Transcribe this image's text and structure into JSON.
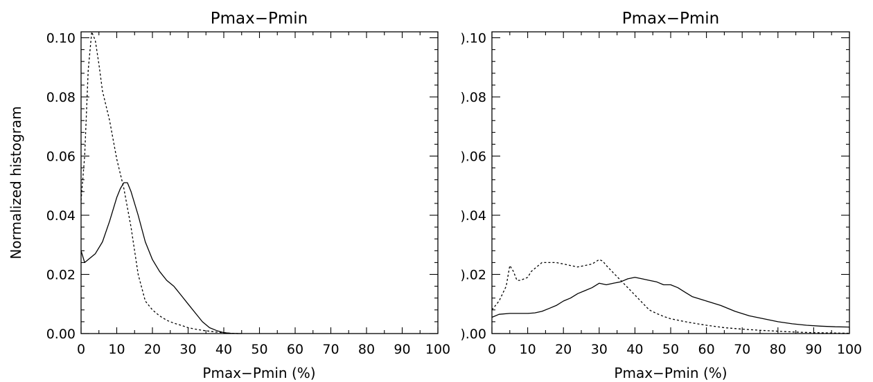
{
  "chart_data": [
    {
      "type": "line",
      "title": "Pmax−Pmin",
      "xlabel": "Pmax−Pmin (%)",
      "ylabel": "Normalized histogram",
      "xlim": [
        0,
        100
      ],
      "ylim": [
        0,
        0.102
      ],
      "x_ticks": [
        0,
        10,
        20,
        30,
        40,
        50,
        60,
        70,
        80,
        90,
        100
      ],
      "x_tick_labels": [
        "0",
        "10",
        "20",
        "30",
        "40",
        "50",
        "60",
        "70",
        "80",
        "90",
        "100"
      ],
      "y_ticks": [
        0,
        0.02,
        0.04,
        0.06,
        0.08,
        0.1
      ],
      "y_tick_labels": [
        "0.00",
        "0.02",
        "0.04",
        "0.06",
        "0.08",
        "0.10"
      ],
      "grid": false,
      "series": [
        {
          "style": "solid",
          "color": "#000000",
          "x": [
            0,
            1,
            2,
            4,
            6,
            8,
            10,
            11,
            12,
            13,
            14,
            16,
            18,
            20,
            22,
            24,
            26,
            28,
            30,
            32,
            34,
            36,
            38,
            40,
            42,
            44,
            45
          ],
          "y": [
            0.028,
            0.024,
            0.025,
            0.027,
            0.031,
            0.038,
            0.046,
            0.049,
            0.051,
            0.051,
            0.048,
            0.04,
            0.031,
            0.025,
            0.021,
            0.018,
            0.016,
            0.013,
            0.01,
            0.007,
            0.004,
            0.002,
            0.001,
            0.0003,
            0.0001,
            0,
            0
          ]
        },
        {
          "style": "dotted",
          "color": "#000000",
          "x": [
            0,
            1,
            2,
            3,
            4,
            5,
            6,
            8,
            10,
            12,
            14,
            16,
            18,
            20,
            22,
            24,
            26,
            28,
            30,
            32,
            34,
            36,
            38,
            40,
            42,
            44
          ],
          "y": [
            0.045,
            0.06,
            0.089,
            0.102,
            0.099,
            0.091,
            0.082,
            0.072,
            0.059,
            0.049,
            0.036,
            0.02,
            0.011,
            0.008,
            0.006,
            0.0045,
            0.0035,
            0.0028,
            0.002,
            0.0015,
            0.0011,
            0.0008,
            0.0005,
            0.0003,
            0.0001,
            0
          ]
        }
      ]
    },
    {
      "type": "line",
      "title": "Pmax−Pmin",
      "xlabel": "Pmax−Pmin (%)",
      "ylabel": "",
      "xlim": [
        0,
        100
      ],
      "ylim": [
        0,
        0.102
      ],
      "x_ticks": [
        0,
        10,
        20,
        30,
        40,
        50,
        60,
        70,
        80,
        90,
        100
      ],
      "x_tick_labels": [
        "0",
        "10",
        "20",
        "30",
        "40",
        "50",
        "60",
        "70",
        "80",
        "90",
        "100"
      ],
      "y_ticks": [
        0,
        0.02,
        0.04,
        0.06,
        0.08,
        0.1
      ],
      "y_tick_labels": [
        ").00",
        ").02",
        ").04",
        ").06",
        ").08",
        ").10"
      ],
      "grid": false,
      "series": [
        {
          "style": "solid",
          "color": "#000000",
          "x": [
            0,
            2,
            5,
            8,
            10,
            12,
            14,
            16,
            18,
            20,
            22,
            24,
            26,
            28,
            30,
            32,
            34,
            36,
            38,
            40,
            42,
            44,
            46,
            48,
            50,
            52,
            54,
            56,
            60,
            64,
            68,
            72,
            76,
            80,
            84,
            88,
            92,
            96,
            100
          ],
          "y": [
            0.0055,
            0.0065,
            0.0068,
            0.0068,
            0.0068,
            0.007,
            0.0075,
            0.0085,
            0.0095,
            0.011,
            0.012,
            0.0135,
            0.0145,
            0.0155,
            0.017,
            0.0165,
            0.017,
            0.0175,
            0.0185,
            0.019,
            0.0185,
            0.018,
            0.0175,
            0.0165,
            0.0165,
            0.0155,
            0.014,
            0.0125,
            0.011,
            0.0095,
            0.0075,
            0.006,
            0.005,
            0.004,
            0.0033,
            0.0028,
            0.0025,
            0.0023,
            0.0022
          ]
        },
        {
          "style": "dotted",
          "color": "#000000",
          "x": [
            0,
            2,
            4,
            5,
            6,
            7,
            8,
            10,
            11,
            12,
            14,
            16,
            18,
            20,
            22,
            24,
            26,
            28,
            30,
            31,
            32,
            34,
            36,
            38,
            40,
            42,
            44,
            46,
            48,
            50,
            55,
            60,
            65,
            70,
            75,
            80,
            85,
            90,
            95,
            100
          ],
          "y": [
            0.008,
            0.011,
            0.016,
            0.023,
            0.021,
            0.018,
            0.018,
            0.019,
            0.021,
            0.022,
            0.024,
            0.024,
            0.024,
            0.0235,
            0.023,
            0.0225,
            0.023,
            0.0235,
            0.025,
            0.0245,
            0.023,
            0.0205,
            0.018,
            0.0155,
            0.013,
            0.0105,
            0.008,
            0.0068,
            0.0058,
            0.005,
            0.0038,
            0.0028,
            0.002,
            0.0015,
            0.0011,
            0.0008,
            0.0005,
            0.0003,
            0.0002,
            0.0001
          ]
        }
      ]
    }
  ]
}
